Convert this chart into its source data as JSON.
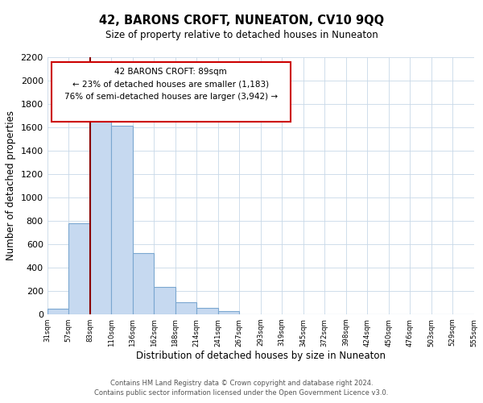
{
  "title": "42, BARONS CROFT, NUNEATON, CV10 9QQ",
  "subtitle": "Size of property relative to detached houses in Nuneaton",
  "xlabel": "Distribution of detached houses by size in Nuneaton",
  "ylabel": "Number of detached properties",
  "bar_values": [
    50,
    780,
    1830,
    1610,
    520,
    230,
    105,
    55,
    25,
    0,
    0,
    0,
    0,
    0,
    0,
    0,
    0,
    0,
    0,
    0
  ],
  "categories": [
    "31sqm",
    "57sqm",
    "83sqm",
    "110sqm",
    "136sqm",
    "162sqm",
    "188sqm",
    "214sqm",
    "241sqm",
    "267sqm",
    "293sqm",
    "319sqm",
    "345sqm",
    "372sqm",
    "398sqm",
    "424sqm",
    "450sqm",
    "476sqm",
    "503sqm",
    "529sqm",
    "555sqm"
  ],
  "bar_color": "#c6d9f0",
  "bar_edge_color": "#7ba7d0",
  "property_line_color": "#8b0000",
  "annotation_box_text": "42 BARONS CROFT: 89sqm\n← 23% of detached houses are smaller (1,183)\n76% of semi-detached houses are larger (3,942) →",
  "ylim": [
    0,
    2200
  ],
  "yticks": [
    0,
    200,
    400,
    600,
    800,
    1000,
    1200,
    1400,
    1600,
    1800,
    2000,
    2200
  ],
  "footer_line1": "Contains HM Land Registry data © Crown copyright and database right 2024.",
  "footer_line2": "Contains public sector information licensed under the Open Government Licence v3.0.",
  "background_color": "#ffffff",
  "grid_color": "#c8d8e8"
}
